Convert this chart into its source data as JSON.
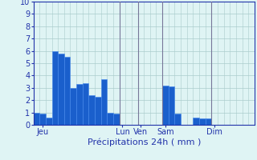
{
  "title": "Précipitations 24h ( mm )",
  "background_color": "#dff4f4",
  "bar_color": "#1a5fcc",
  "bar_edge_color": "#4488ee",
  "ylim": [
    0,
    10
  ],
  "yticks": [
    0,
    1,
    2,
    3,
    4,
    5,
    6,
    7,
    8,
    9,
    10
  ],
  "grid_color": "#aacccc",
  "grid_color_dark": "#9999bb",
  "bar_values": [
    1.0,
    0.9,
    0.6,
    6.0,
    5.8,
    5.5,
    3.0,
    3.3,
    3.4,
    2.4,
    2.3,
    3.7,
    1.0,
    0.9,
    0,
    0,
    0,
    0,
    0,
    0,
    0,
    3.2,
    3.1,
    0.9,
    0,
    0,
    0.6,
    0.5,
    0.5,
    0,
    0,
    0,
    0,
    0,
    0,
    0
  ],
  "num_bars": 36,
  "day_labels": [
    "Jeu",
    "Lun",
    "Ven",
    "Sam",
    "Dim"
  ],
  "day_tick_positions": [
    1,
    14,
    17,
    21,
    29
  ],
  "vline_positions": [
    13.5,
    16.5,
    20.5,
    28.5
  ],
  "vline_color": "#777799",
  "xlabel_fontsize": 8,
  "ytick_fontsize": 7,
  "xtick_fontsize": 7,
  "tick_color": "#2233aa",
  "spine_color": "#2233aa"
}
